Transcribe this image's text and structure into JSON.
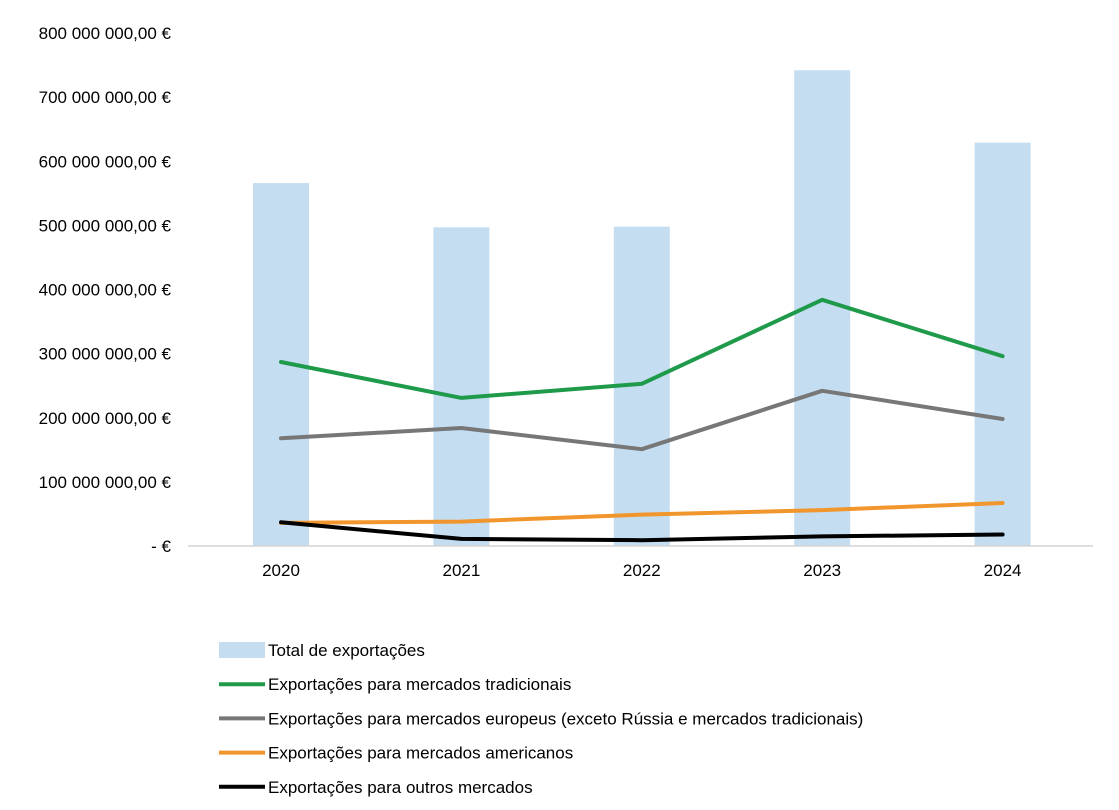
{
  "chart_data": {
    "type": "bar",
    "categories": [
      "2020",
      "2021",
      "2022",
      "2023",
      "2024"
    ],
    "ylim": [
      0,
      800000000
    ],
    "y_ticks": [
      {
        "value": 800000000,
        "label": "800 000 000,00 €"
      },
      {
        "value": 700000000,
        "label": "700 000 000,00 €"
      },
      {
        "value": 600000000,
        "label": "600 000 000,00 €"
      },
      {
        "value": 500000000,
        "label": "500 000 000,00 €"
      },
      {
        "value": 400000000,
        "label": "400 000 000,00 €"
      },
      {
        "value": 300000000,
        "label": "300 000 000,00 €"
      },
      {
        "value": 200000000,
        "label": "200 000 000,00 €"
      },
      {
        "value": 100000000,
        "label": "100 000 000,00 €"
      },
      {
        "value": 0,
        "label": "-  €"
      }
    ],
    "grid": false,
    "legend_position": "bottom",
    "series": [
      {
        "name": "Total de exportações",
        "kind": "bar",
        "color": "#c5ddf1",
        "values": [
          566000000,
          497000000,
          498000000,
          742000000,
          629000000
        ]
      },
      {
        "name": "Exportações para mercados tradicionais",
        "kind": "line",
        "color": "#1e9a4a",
        "values": [
          287000000,
          231000000,
          253000000,
          384000000,
          296000000
        ]
      },
      {
        "name": "Exportações para mercados europeus (exceto Rússia e mercados tradicionais)",
        "kind": "line",
        "color": "#777777",
        "values": [
          168000000,
          184000000,
          151000000,
          242000000,
          198000000
        ]
      },
      {
        "name": "Exportações para mercados americanos",
        "kind": "line",
        "color": "#f0962c",
        "values": [
          36000000,
          38000000,
          49000000,
          56000000,
          67000000
        ]
      },
      {
        "name": "Exportações para outros mercados",
        "kind": "line",
        "color": "#000000",
        "values": [
          37000000,
          11000000,
          9000000,
          15000000,
          18000000
        ]
      }
    ]
  }
}
